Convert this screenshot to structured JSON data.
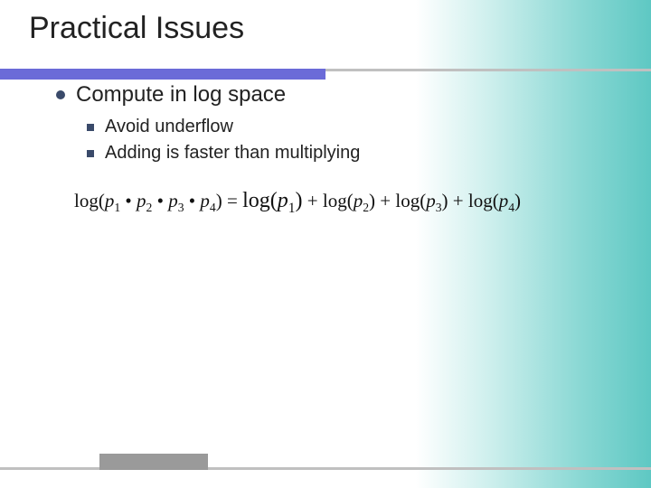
{
  "slide": {
    "title": "Practical Issues",
    "bullet_main": "Compute in log space",
    "sub_bullets": [
      "Avoid underflow",
      "Adding is faster than multiplying"
    ],
    "formula": {
      "lhs_func": "log(",
      "lhs_terms": [
        "p",
        "p",
        "p",
        "p"
      ],
      "lhs_subs": [
        "1",
        "2",
        "3",
        "4"
      ],
      "lhs_sep": " • ",
      "lhs_close": ") = ",
      "rhs_func": "log(",
      "rhs_terms": [
        "p",
        "p",
        "p",
        "p"
      ],
      "rhs_subs": [
        "1",
        "2",
        "3",
        "4"
      ],
      "rhs_close": ")",
      "rhs_sep": " + "
    }
  },
  "style": {
    "bg_gradient_from": "#ffffff",
    "bg_gradient_to": "#5ec8c3",
    "underline_color": "#6b6bd8",
    "bullet_color": "#3a4a6a",
    "title_fontsize": 34,
    "l1_fontsize": 24,
    "l2_fontsize": 20,
    "formula_fontsize": 21,
    "footer_bar_color": "#9a9a9a"
  }
}
